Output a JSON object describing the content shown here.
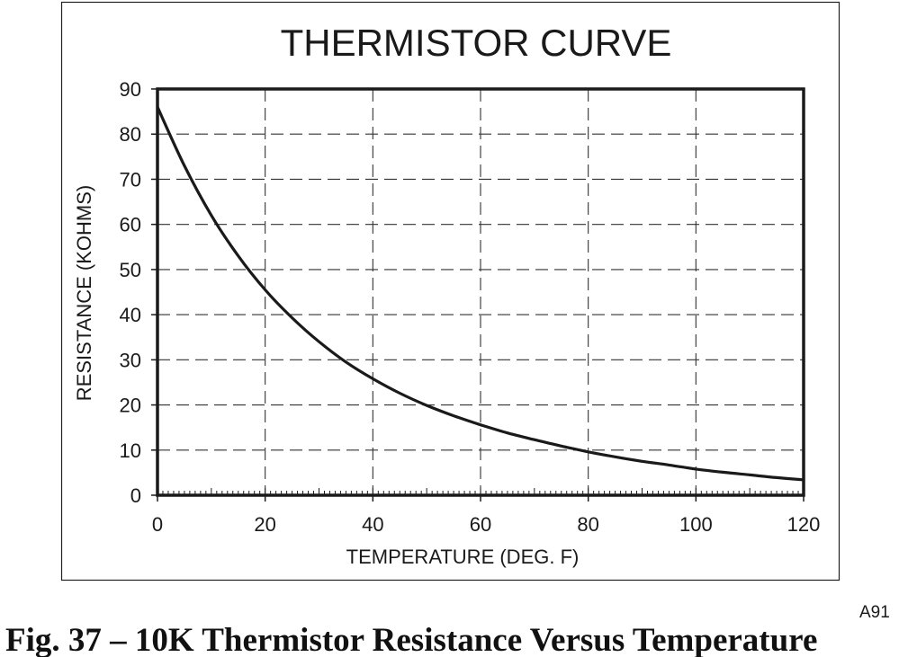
{
  "figure_code": "A91",
  "caption": "Fig. 37 – 10K Thermistor Resistance Versus Temperature",
  "chart_data": {
    "type": "line",
    "title": "THERMISTOR CURVE",
    "xlabel": "TEMPERATURE (DEG. F)",
    "ylabel": "RESISTANCE (KOHMS)",
    "xlim": [
      0,
      120
    ],
    "ylim": [
      0,
      90
    ],
    "xticks": [
      0,
      20,
      40,
      60,
      80,
      100,
      120
    ],
    "yticks": [
      0,
      10,
      20,
      30,
      40,
      50,
      60,
      70,
      80,
      90
    ],
    "grid": true,
    "series": [
      {
        "x": [
          0,
          5,
          10,
          15,
          20,
          25,
          30,
          35,
          40,
          45,
          50,
          55,
          60,
          65,
          70,
          75,
          80,
          85,
          90,
          95,
          100,
          105,
          110,
          115,
          120
        ],
        "y": [
          86,
          73,
          62,
          53,
          45.5,
          39.3,
          34,
          29.5,
          25.8,
          22.6,
          19.9,
          17.6,
          15.6,
          13.8,
          12.3,
          10.9,
          9.6,
          8.5,
          7.5,
          6.7,
          5.8,
          5.1,
          4.5,
          3.9,
          3.4
        ]
      }
    ]
  }
}
